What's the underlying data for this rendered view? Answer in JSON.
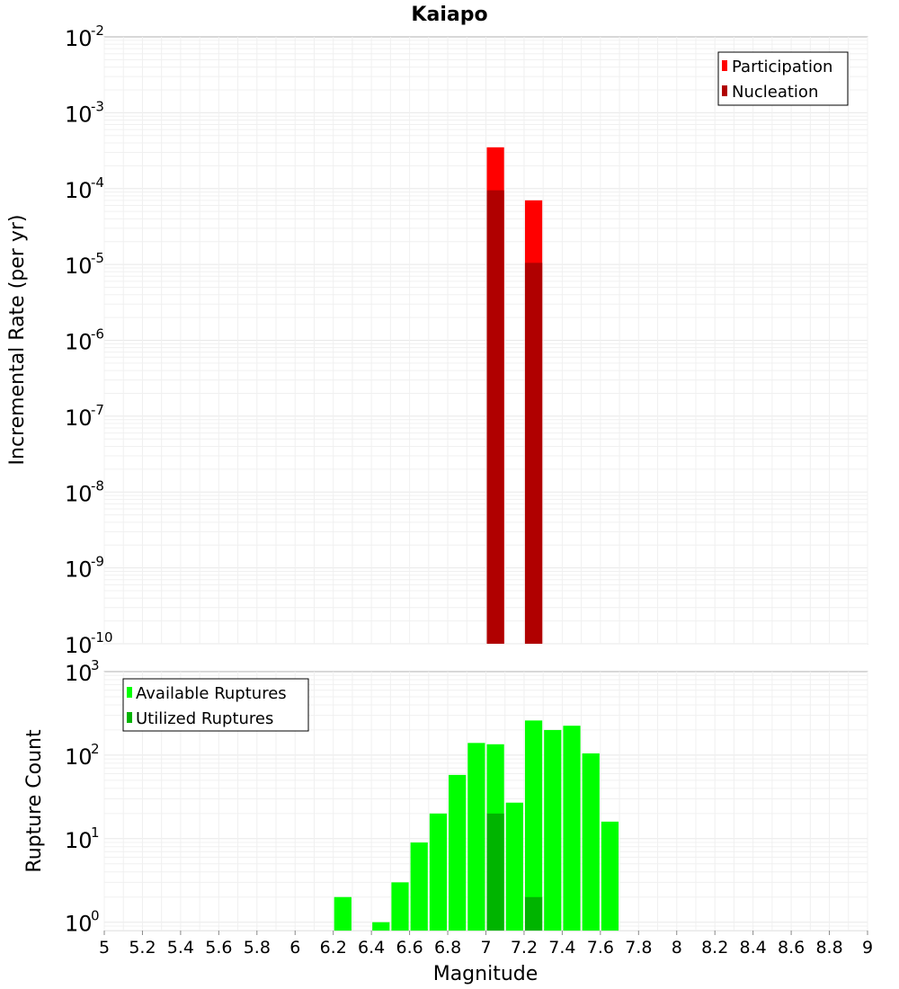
{
  "chart_data": [
    {
      "type": "bar",
      "title": "Kaiapo",
      "ylabel": "Incremental Rate (per yr)",
      "xlabel": "",
      "y_scale": "log",
      "ylim_exponents": [
        -10,
        -2
      ],
      "y_tick_base": "10",
      "y_tick_exponents": [
        "-2",
        "-3",
        "-4",
        "-5",
        "-6",
        "-7",
        "-8",
        "-9",
        "-10"
      ],
      "xlim": [
        5,
        9
      ],
      "grid": true,
      "legend_position": "top-right",
      "colors": {
        "participation": "#ff0000",
        "nucleation": "#b00000"
      },
      "series": [
        {
          "name": "Participation",
          "x": [
            7.05,
            7.25
          ],
          "values": [
            0.00035,
            7e-05
          ]
        },
        {
          "name": "Nucleation",
          "x": [
            7.05,
            7.25
          ],
          "values": [
            9.5e-05,
            1.05e-05
          ]
        }
      ]
    },
    {
      "type": "bar",
      "title": "",
      "ylabel": "Rupture Count",
      "xlabel": "Magnitude",
      "y_scale": "log",
      "ylim_exponents": [
        -0.1,
        3
      ],
      "y_tick_base": "10",
      "y_tick_exponents": [
        "3",
        "2",
        "1",
        "0"
      ],
      "xlim": [
        5,
        9
      ],
      "x_ticks": [
        "5",
        "5.2",
        "5.4",
        "5.6",
        "5.8",
        "6",
        "6.2",
        "6.4",
        "6.6",
        "6.8",
        "7",
        "7.2",
        "7.4",
        "7.6",
        "7.8",
        "8",
        "8.2",
        "8.4",
        "8.6",
        "8.8",
        "9"
      ],
      "grid": true,
      "legend_position": "top-left",
      "colors": {
        "available": "#00ff00",
        "utilized": "#00b400"
      },
      "series": [
        {
          "name": "Available Ruptures",
          "x": [
            6.25,
            6.45,
            6.55,
            6.65,
            6.75,
            6.85,
            6.95,
            7.05,
            7.15,
            7.25,
            7.35,
            7.45,
            7.55,
            7.65
          ],
          "values": [
            2,
            1,
            3,
            9,
            20,
            58,
            140,
            135,
            27,
            260,
            200,
            225,
            105,
            16
          ]
        },
        {
          "name": "Utilized Ruptures",
          "x": [
            7.05,
            7.25
          ],
          "values": [
            20,
            2
          ]
        }
      ]
    }
  ]
}
